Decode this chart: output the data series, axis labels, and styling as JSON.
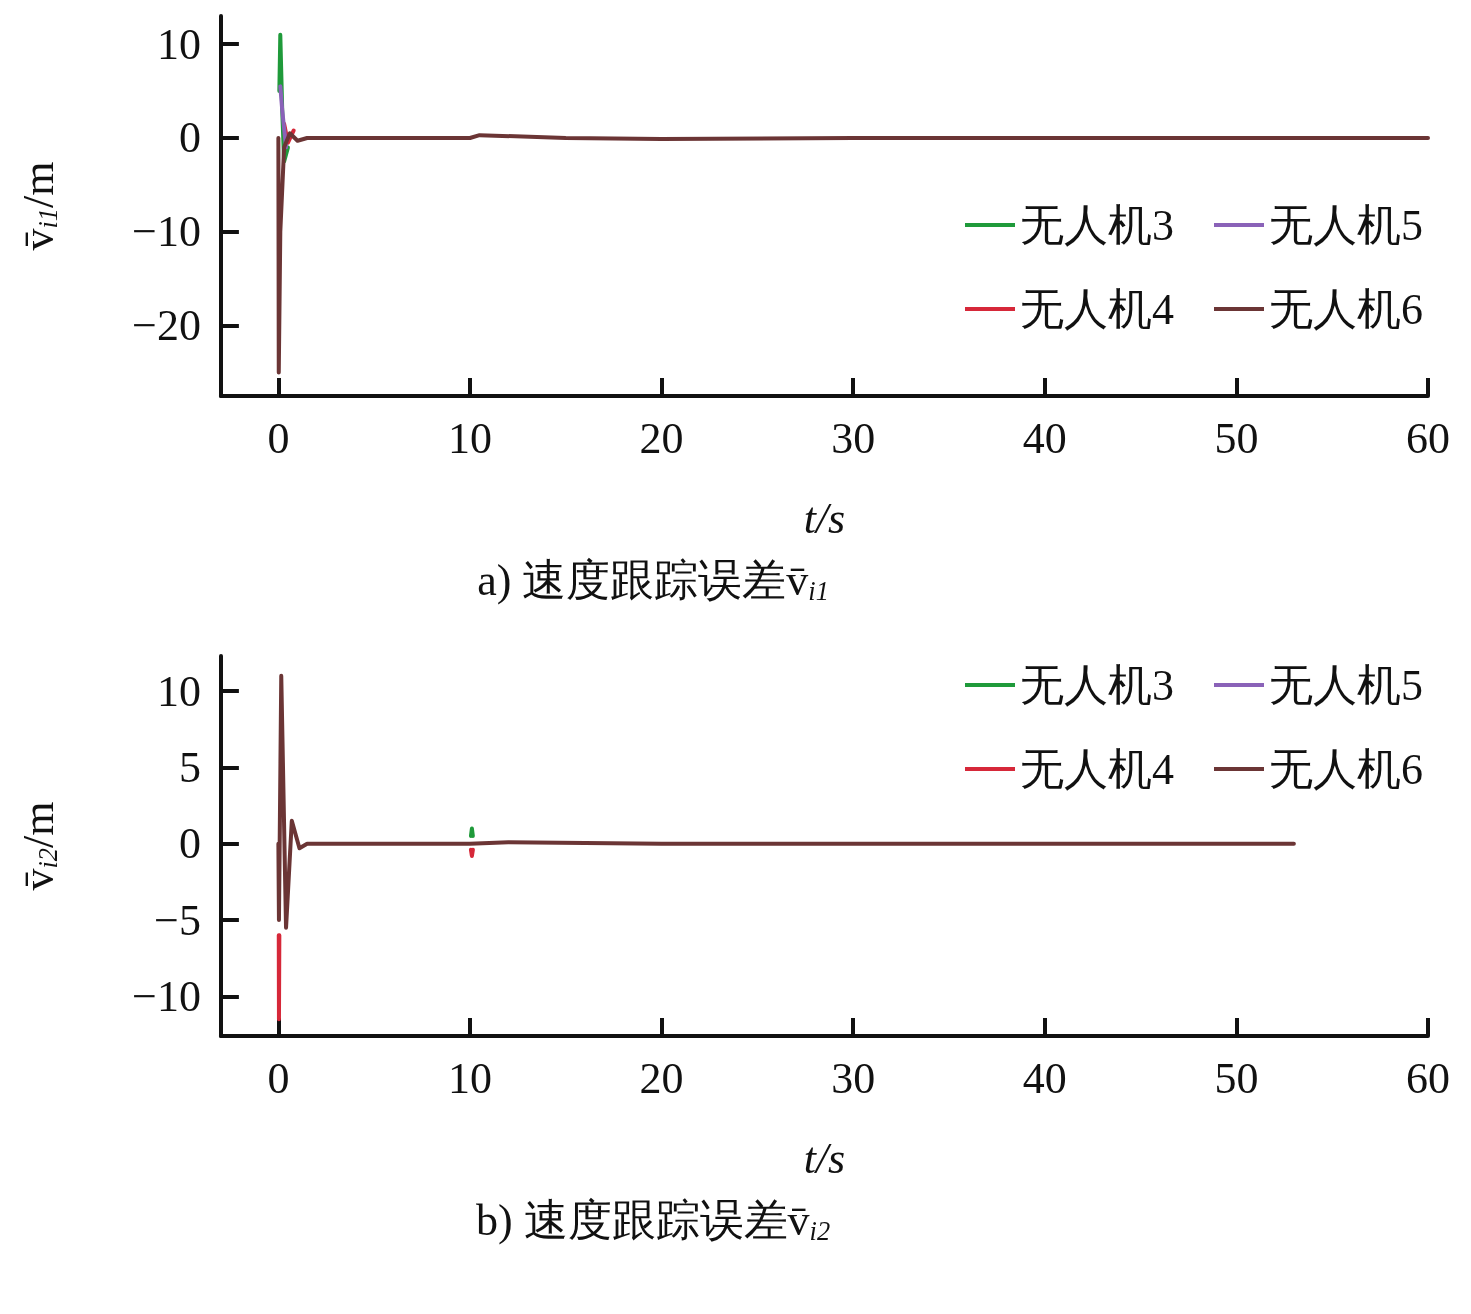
{
  "chart_data": [
    {
      "type": "line",
      "title": "a) 速度跟踪误差v̄$_{i1}$",
      "xlabel": "t/s",
      "ylabel": "v̄$_{i1}$/m",
      "xlim": [
        -3,
        60
      ],
      "ylim": [
        -27.5,
        13
      ],
      "xticks": [
        0,
        10,
        20,
        30,
        40,
        50,
        60
      ],
      "yticks": [
        {
          "value": -20,
          "label": "−20"
        },
        {
          "value": -10,
          "label": "−10"
        },
        0,
        10
      ],
      "legend": "right",
      "grid": false,
      "marker": "none",
      "line_style": "solid",
      "series": [
        {
          "name": "无人机3",
          "color": "#1f9a3a",
          "x": [
            0.05,
            0.1,
            0.2,
            0.3,
            0.5
          ],
          "values": [
            5,
            11,
            3,
            -2.5,
            -1
          ]
        },
        {
          "name": "无人机4",
          "color": "#d62839",
          "x": [
            0.3,
            0.5,
            0.8
          ],
          "values": [
            1.5,
            -0.5,
            0.8
          ]
        },
        {
          "name": "无人机5",
          "color": "#8a62b8",
          "x": [
            0.1,
            0.2,
            0.4
          ],
          "values": [
            5.5,
            3,
            -1
          ]
        },
        {
          "name": "无人机6",
          "color": "#6b3535",
          "x": [
            0,
            0.02,
            0.1,
            0.3,
            0.6,
            1,
            1.5,
            2,
            10,
            10.5,
            15,
            20,
            30,
            40,
            50,
            60
          ],
          "values": [
            0,
            -25,
            -10,
            -1,
            0.5,
            -0.3,
            0,
            0,
            0,
            0.3,
            0,
            -0.1,
            0,
            0,
            0,
            0
          ]
        }
      ]
    },
    {
      "type": "line",
      "title": "b) 速度跟踪误差v̄$_{i2}$",
      "xlabel": "t/s",
      "ylabel": "v̄$_{i2}$/m",
      "xlim": [
        -3,
        60
      ],
      "ylim": [
        -12.6,
        12.3
      ],
      "xticks": [
        0,
        10,
        20,
        30,
        40,
        50,
        60
      ],
      "yticks": [
        {
          "value": -10,
          "label": "−10"
        },
        {
          "value": -5,
          "label": "−5"
        },
        0,
        5,
        10
      ],
      "legend": "top right",
      "grid": false,
      "marker": "none",
      "line_style": "solid",
      "series": [
        {
          "name": "无人机3",
          "color": "#1f9a3a",
          "x": [
            10.05,
            10.1,
            10.15
          ],
          "values": [
            0.5,
            1,
            0.5
          ]
        },
        {
          "name": "无人机4",
          "color": "#d62839",
          "x": [
            0.02,
            0.03,
            0.05,
            5,
            10.05,
            10.1,
            10.15
          ],
          "values": [
            -6,
            -11.5,
            -6,
            null,
            -0.4,
            -0.8,
            -0.4
          ]
        },
        {
          "name": "无人机5",
          "color": "#8a62b8"
        },
        {
          "name": "无人机6",
          "color": "#6b3535",
          "x": [
            0,
            0.03,
            0.15,
            0.4,
            0.7,
            1.1,
            1.5,
            2,
            10,
            12,
            20,
            30,
            40,
            53
          ],
          "values": [
            0,
            -5,
            11,
            -5.5,
            1.5,
            -0.3,
            0,
            0,
            0,
            0.1,
            0,
            0,
            0,
            0
          ]
        }
      ]
    }
  ]
}
